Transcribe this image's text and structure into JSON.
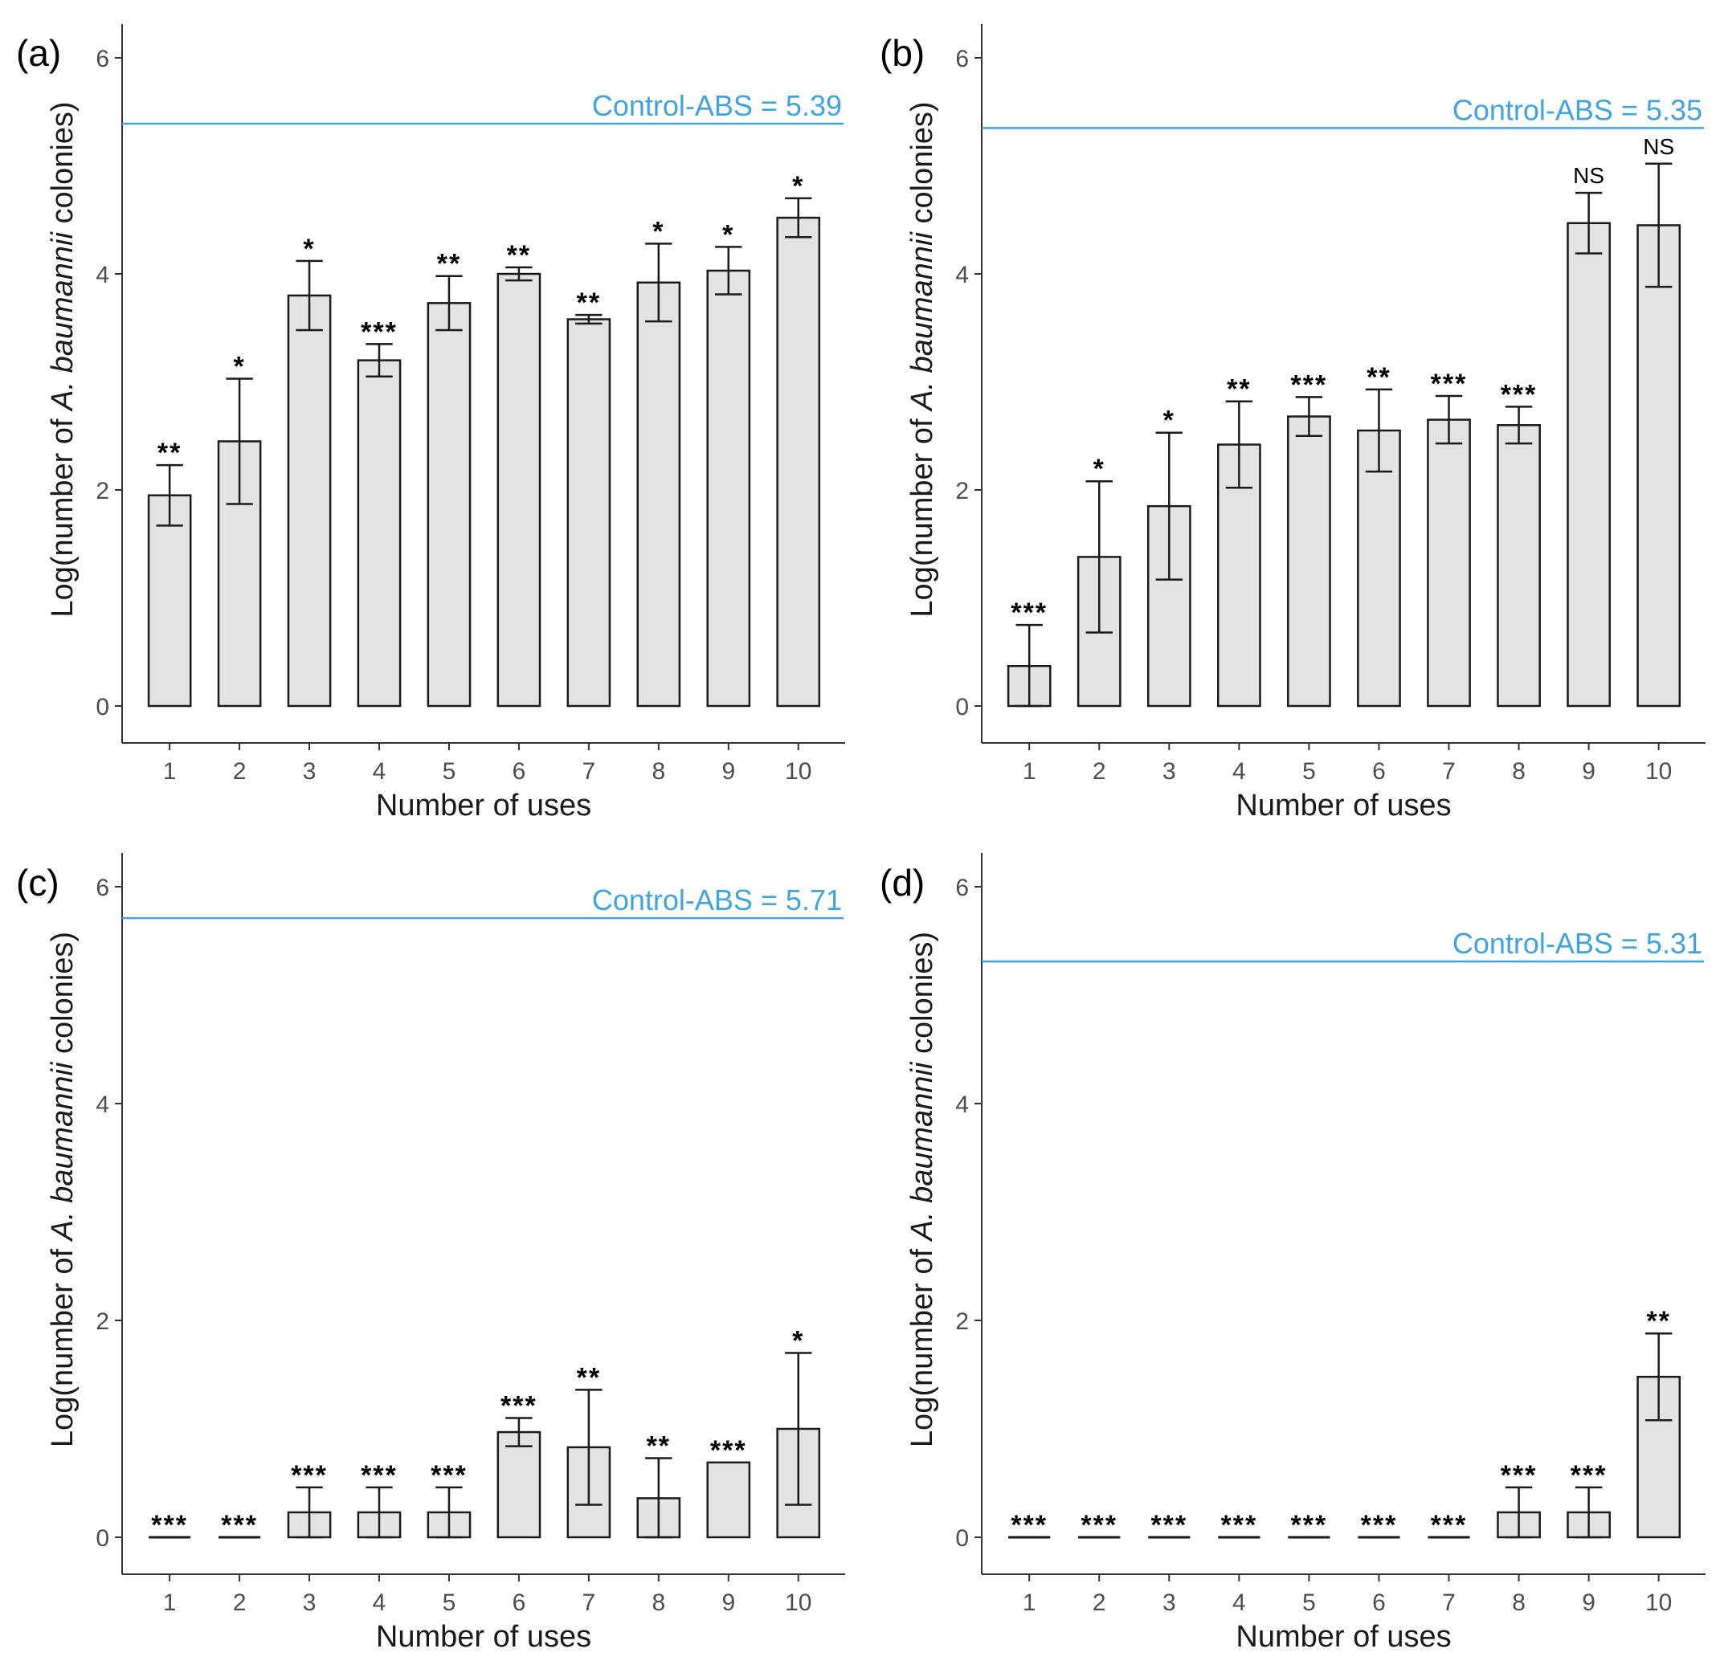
{
  "colors": {
    "bar_fill": "#e3e3e3",
    "bar_stroke": "#1a1a1a",
    "control_line": "#3fa4e0",
    "axis": "#333333"
  },
  "chart_data": [
    {
      "type": "bar",
      "panel_label": "(a)",
      "categories": [
        "1",
        "2",
        "3",
        "4",
        "5",
        "6",
        "7",
        "8",
        "9",
        "10"
      ],
      "values": [
        1.95,
        2.45,
        3.8,
        3.2,
        3.73,
        4.0,
        3.58,
        3.92,
        4.03,
        4.52
      ],
      "errors": [
        0.28,
        0.58,
        0.32,
        0.15,
        0.25,
        0.06,
        0.04,
        0.36,
        0.22,
        0.18
      ],
      "significance": [
        "**",
        "*",
        "*",
        "***",
        "**",
        "**",
        "**",
        "*",
        "*",
        "*"
      ],
      "control_value": 5.39,
      "control_label": "Control-ABS = 5.39",
      "xlabel": "Number of uses",
      "ylabel_prefix": "Log(number of ",
      "ylabel_italic": "A. baumannii",
      "ylabel_suffix": " colonies)",
      "ylim": [
        0,
        6
      ],
      "yticks": [
        "0",
        "2",
        "4",
        "6"
      ]
    },
    {
      "type": "bar",
      "panel_label": "(b)",
      "categories": [
        "1",
        "2",
        "3",
        "4",
        "5",
        "6",
        "7",
        "8",
        "9",
        "10"
      ],
      "values": [
        0.37,
        1.38,
        1.85,
        2.42,
        2.68,
        2.55,
        2.65,
        2.6,
        4.47,
        4.45
      ],
      "errors": [
        0.38,
        0.7,
        0.68,
        0.4,
        0.18,
        0.38,
        0.22,
        0.17,
        0.28,
        0.57
      ],
      "significance": [
        "***",
        "*",
        "*",
        "**",
        "***",
        "**",
        "***",
        "***",
        "NS",
        "NS"
      ],
      "control_value": 5.35,
      "control_label": "Control-ABS = 5.35",
      "xlabel": "Number of uses",
      "ylabel_prefix": "Log(number of ",
      "ylabel_italic": "A. baumannii",
      "ylabel_suffix": " colonies)",
      "ylim": [
        0,
        6
      ],
      "yticks": [
        "0",
        "2",
        "4",
        "6"
      ]
    },
    {
      "type": "bar",
      "panel_label": "(c)",
      "categories": [
        "1",
        "2",
        "3",
        "4",
        "5",
        "6",
        "7",
        "8",
        "9",
        "10"
      ],
      "values": [
        0,
        0,
        0.23,
        0.23,
        0.23,
        0.97,
        0.83,
        0.36,
        0.69,
        1.0
      ],
      "errors": [
        0,
        0,
        0.23,
        0.23,
        0.23,
        0.13,
        0.53,
        0.37,
        0,
        0.7
      ],
      "significance": [
        "***",
        "***",
        "***",
        "***",
        "***",
        "***",
        "**",
        "**",
        "***",
        "*"
      ],
      "control_value": 5.71,
      "control_label": "Control-ABS = 5.71",
      "xlabel": "Number of uses",
      "ylabel_prefix": "Log(number of ",
      "ylabel_italic": "A. baumannii",
      "ylabel_suffix": " colonies)",
      "ylim": [
        0,
        6
      ],
      "yticks": [
        "0",
        "2",
        "4",
        "6"
      ]
    },
    {
      "type": "bar",
      "panel_label": "(d)",
      "categories": [
        "1",
        "2",
        "3",
        "4",
        "5",
        "6",
        "7",
        "8",
        "9",
        "10"
      ],
      "values": [
        0,
        0,
        0,
        0,
        0,
        0,
        0,
        0.23,
        0.23,
        1.48
      ],
      "errors": [
        0,
        0,
        0,
        0,
        0,
        0,
        0,
        0.23,
        0.23,
        0.4
      ],
      "significance": [
        "***",
        "***",
        "***",
        "***",
        "***",
        "***",
        "***",
        "***",
        "***",
        "**"
      ],
      "control_value": 5.31,
      "control_label": "Control-ABS = 5.31",
      "xlabel": "Number of uses",
      "ylabel_prefix": "Log(number of ",
      "ylabel_italic": "A. baumannii",
      "ylabel_suffix": " colonies)",
      "ylim": [
        0,
        6
      ],
      "yticks": [
        "0",
        "2",
        "4",
        "6"
      ]
    }
  ]
}
